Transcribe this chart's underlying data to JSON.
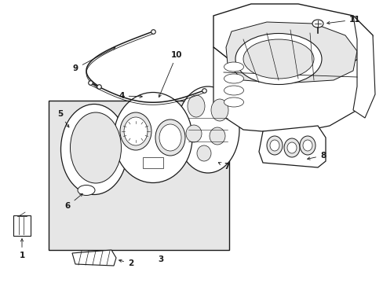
{
  "bg_color": "#ffffff",
  "line_color": "#1a1a1a",
  "box_fill": "#e8e8e8",
  "lw": 0.8
}
